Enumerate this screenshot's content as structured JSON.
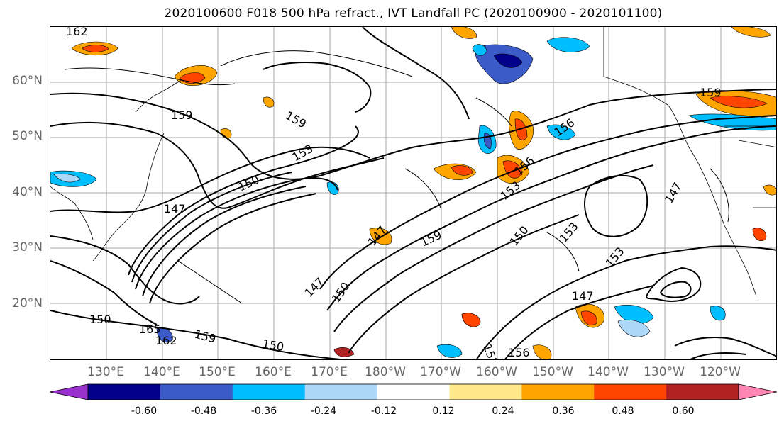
{
  "title": "2020100600 F018 500 hPa refract., IVT Landfall PC (2020100900 - 2020101100)",
  "lat_labels": [
    "60°N",
    "50°N",
    "40°N",
    "30°N",
    "20°N"
  ],
  "lon_labels": [
    "130°E",
    "140°E",
    "150°E",
    "160°E",
    "170°E",
    "180°W",
    "170°W",
    "160°W",
    "150°W",
    "140°W",
    "130°W",
    "120°W"
  ],
  "contour_labels": [
    "162",
    "159",
    "159",
    "153",
    "150",
    "147",
    "147",
    "147",
    "150",
    "153",
    "156",
    "156",
    "153",
    "150",
    "147",
    "147",
    "150",
    "153",
    "156",
    "159",
    "159",
    "162",
    "165",
    "159",
    "153",
    "150"
  ],
  "colorbar": {
    "ticks": [
      "-0.60",
      "-0.48",
      "-0.36",
      "-0.24",
      "-0.12",
      "0.12",
      "0.24",
      "0.36",
      "0.48",
      "0.60"
    ],
    "colors": [
      "#9932cc",
      "#00008b",
      "#3a5bc8",
      "#00bfff",
      "#add8f8",
      "#ffffff",
      "#ffe98a",
      "#ffa500",
      "#ff4500",
      "#b22222",
      "#ff85b3"
    ]
  }
}
